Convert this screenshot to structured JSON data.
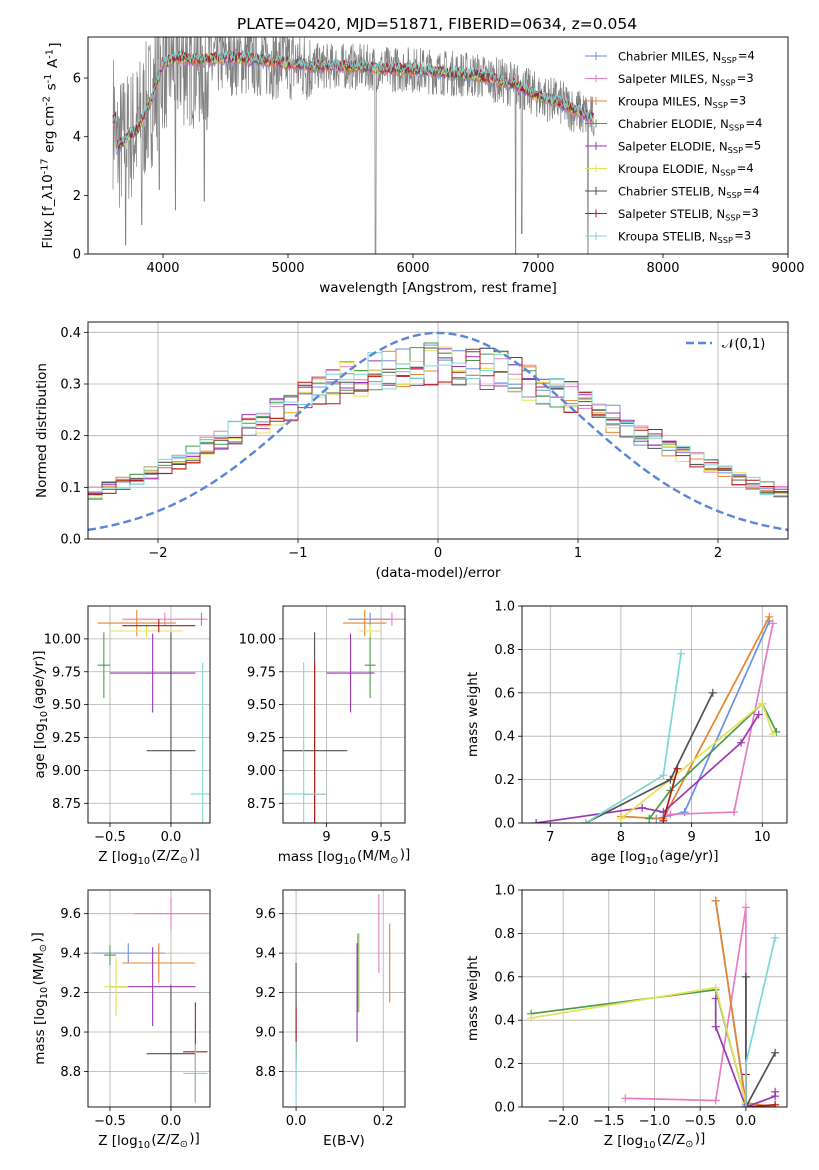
{
  "title": "PLATE=0420, MJD=51871, FIBERID=0634, z=0.054",
  "colors": [
    "#6b8ee6",
    "#e87dc0",
    "#e8842c",
    "#4d9a4d",
    "#9c36b5",
    "#e3e35a",
    "#505050",
    "#b31a1a",
    "#7fd6d6"
  ],
  "legend_labels": [
    "Chabrier MILES, N_{SSP}=4",
    "Salpeter MILES, N_{SSP}=3",
    "Kroupa MILES, N_{SSP}=3",
    "Chabrier ELODIE, N_{SSP}=4",
    "Salpeter ELODIE, N_{SSP}=5",
    "Kroupa ELODIE, N_{SSP}=4",
    "Chabrier STELIB, N_{SSP}=4",
    "Salpeter STELIB, N_{SSP}=3",
    "Kroupa STELIB, N_{SSP}=3"
  ],
  "chart_data": [
    {
      "id": "spectrum",
      "type": "line",
      "xlabel": "wavelength [Angstrom, rest frame]",
      "ylabel": "Flux [f_λ10^{-17} erg cm^{-2} s^{-1} A^{-1}]",
      "xlim": [
        3400,
        9000
      ],
      "ylim": [
        0,
        7.4
      ],
      "xticks": [
        4000,
        5000,
        6000,
        7000,
        8000,
        9000
      ],
      "yticks": [
        0,
        2,
        4,
        6
      ],
      "data_range": [
        3600,
        7450
      ],
      "continuum": [
        [
          3620,
          3.6
        ],
        [
          3700,
          3.9
        ],
        [
          3800,
          4.3
        ],
        [
          3900,
          5.2
        ],
        [
          4000,
          6.5
        ],
        [
          4100,
          6.7
        ],
        [
          4300,
          6.6
        ],
        [
          4500,
          6.7
        ],
        [
          4800,
          6.6
        ],
        [
          5000,
          6.5
        ],
        [
          5200,
          6.4
        ],
        [
          5500,
          6.4
        ],
        [
          5800,
          6.3
        ],
        [
          6000,
          6.3
        ],
        [
          6200,
          6.2
        ],
        [
          6500,
          6.1
        ],
        [
          6800,
          5.8
        ],
        [
          7000,
          5.4
        ],
        [
          7150,
          5.2
        ],
        [
          7300,
          4.9
        ],
        [
          7450,
          4.6
        ]
      ],
      "dips": [
        [
          3700,
          0.3
        ],
        [
          3830,
          1.0
        ],
        [
          3970,
          2.2
        ],
        [
          4100,
          1.5
        ],
        [
          4330,
          1.8
        ],
        [
          5700,
          0
        ],
        [
          6820,
          0
        ],
        [
          6870,
          0.7
        ],
        [
          7400,
          0
        ]
      ]
    },
    {
      "id": "residuals",
      "type": "step",
      "xlabel": "(data-model)/error",
      "ylabel": "Normed distribution",
      "xlim": [
        -2.5,
        2.5
      ],
      "ylim": [
        0,
        0.42
      ],
      "xticks": [
        -2,
        -1,
        0,
        1,
        2
      ],
      "yticks": [
        0.0,
        0.1,
        0.2,
        0.3,
        0.4
      ],
      "legend": "𝒩(0,1)",
      "bin_width": 0.1,
      "bin_start": -2.5
    },
    {
      "id": "age_vs_Z",
      "type": "errorbar",
      "xlabel": "Z [log_{10}(Z/Z_⊙)]",
      "ylabel": "age  [log_{10}(age/yr)]",
      "xlim": [
        -0.68,
        0.32
      ],
      "ylim": [
        8.6,
        10.25
      ],
      "xticks": [
        -0.5,
        0.0
      ],
      "xtick_labels": [
        "−0.5",
        "0.0"
      ],
      "yticks": [
        8.75,
        9.0,
        9.25,
        9.5,
        9.75,
        10.0
      ],
      "points": [
        {
          "s": 0,
          "x": 0.25,
          "xerr": 0.02,
          "y": 10.15,
          "yerr": 0.05
        },
        {
          "s": 1,
          "x": -0.05,
          "xerr": 0.35,
          "y": 10.15,
          "yerr": 0.05
        },
        {
          "s": 2,
          "x": -0.28,
          "xerr": 0.32,
          "y": 10.12,
          "yerr": 0.1
        },
        {
          "s": 3,
          "x": -0.55,
          "xerr": 0.05,
          "y": 9.8,
          "yerr": 0.25
        },
        {
          "s": 4,
          "x": -0.15,
          "xerr": 0.35,
          "y": 9.74,
          "yerr": 0.3
        },
        {
          "s": 5,
          "x": -0.2,
          "xerr": 0.3,
          "y": 10.06,
          "yerr": 0.05
        },
        {
          "s": 6,
          "x": 0.0,
          "xerr": 0.2,
          "y": 9.15,
          "yerr": 0.9
        },
        {
          "s": 7,
          "x": -0.1,
          "xerr": 0.3,
          "y": 10.1,
          "yerr": 0.05
        },
        {
          "s": 8,
          "x": 0.26,
          "xerr": 0.1,
          "y": 8.82,
          "yerr": 1.0
        }
      ]
    },
    {
      "id": "age_vs_mass",
      "type": "errorbar",
      "xlabel": "mass [log_{10}(M/M_⊙)]",
      "xlim": [
        8.6,
        9.72
      ],
      "ylim": [
        8.6,
        10.25
      ],
      "xticks": [
        9.0,
        9.5
      ],
      "yticks": [
        8.75,
        9.0,
        9.25,
        9.5,
        9.75,
        10.0
      ],
      "points": [
        {
          "s": 0,
          "x": 9.4,
          "xerr": 0.2,
          "y": 10.15,
          "yerr": 0.05
        },
        {
          "s": 1,
          "x": 9.6,
          "xerr": 0.2,
          "y": 10.15,
          "yerr": 0.05
        },
        {
          "s": 2,
          "x": 9.35,
          "xerr": 0.2,
          "y": 10.12,
          "yerr": 0.1
        },
        {
          "s": 3,
          "x": 9.4,
          "xerr": 0.05,
          "y": 9.8,
          "yerr": 0.25
        },
        {
          "s": 4,
          "x": 9.22,
          "xerr": 0.22,
          "y": 9.74,
          "yerr": 0.3
        },
        {
          "s": 5,
          "x": 9.4,
          "xerr": 0.1,
          "y": 10.06,
          "yerr": 0.05
        },
        {
          "s": 6,
          "x": 8.89,
          "xerr": 0.3,
          "y": 9.15,
          "yerr": 0.9
        },
        {
          "s": 7,
          "x": 8.89,
          "xerr": 0.1,
          "y": 8.82,
          "yerr": 1.0
        },
        {
          "s": 8,
          "x": 8.79,
          "xerr": 0.2,
          "y": 8.82,
          "yerr": 1.0
        }
      ]
    },
    {
      "id": "weight_vs_age",
      "type": "line",
      "xlabel": "age  [log_{10}(age/yr)]",
      "ylabel": "mass weight",
      "xlim": [
        6.6,
        10.35
      ],
      "ylim": [
        0,
        1.0
      ],
      "xticks": [
        7,
        8,
        9,
        10
      ],
      "yticks": [
        0.0,
        0.2,
        0.4,
        0.6,
        0.8,
        1.0
      ],
      "series": [
        {
          "s": 0,
          "x": [
            8.5,
            8.9,
            10.1
          ],
          "y": [
            0.02,
            0.05,
            0.93
          ]
        },
        {
          "s": 1,
          "x": [
            8.7,
            9.6,
            10.15
          ],
          "y": [
            0.04,
            0.05,
            0.92
          ]
        },
        {
          "s": 2,
          "x": [
            8.0,
            8.6,
            10.1
          ],
          "y": [
            0.03,
            0.02,
            0.95
          ]
        },
        {
          "s": 3,
          "x": [
            8.4,
            8.7,
            10.0,
            10.2
          ],
          "y": [
            0.02,
            0.15,
            0.55,
            0.42
          ]
        },
        {
          "s": 4,
          "x": [
            6.8,
            8.3,
            8.6,
            9.7,
            9.95
          ],
          "y": [
            0.0,
            0.07,
            0.05,
            0.37,
            0.5
          ]
        },
        {
          "s": 5,
          "x": [
            8.0,
            8.7,
            10.0,
            10.15
          ],
          "y": [
            0.02,
            0.2,
            0.55,
            0.41
          ]
        },
        {
          "s": 6,
          "x": [
            7.5,
            8.7,
            9.3
          ],
          "y": [
            0.0,
            0.2,
            0.6
          ]
        },
        {
          "s": 7,
          "x": [
            8.6,
            8.8
          ],
          "y": [
            0.01,
            0.25
          ]
        },
        {
          "s": 8,
          "x": [
            7.5,
            8.6,
            8.85
          ],
          "y": [
            0.0,
            0.22,
            0.78
          ]
        }
      ]
    },
    {
      "id": "mass_vs_Z",
      "type": "errorbar",
      "xlabel": "Z [log_{10}(Z/Z_⊙)]",
      "ylabel": "mass [log_{10}(M/M_⊙)]",
      "xlim": [
        -0.68,
        0.32
      ],
      "ylim": [
        8.62,
        9.72
      ],
      "xticks": [
        -0.5,
        0.0
      ],
      "xtick_labels": [
        "−0.5",
        "0.0"
      ],
      "yticks": [
        8.8,
        9.0,
        9.2,
        9.4,
        9.6
      ],
      "points": [
        {
          "s": 0,
          "x": -0.35,
          "xerr": 0.3,
          "y": 9.4,
          "yerr": 0.05
        },
        {
          "s": 1,
          "x": 0.0,
          "xerr": 0.3,
          "y": 9.6,
          "yerr": 0.08
        },
        {
          "s": 2,
          "x": -0.1,
          "xerr": 0.3,
          "y": 9.35,
          "yerr": 0.1
        },
        {
          "s": 3,
          "x": -0.5,
          "xerr": 0.05,
          "y": 9.39,
          "yerr": 0.05
        },
        {
          "s": 4,
          "x": -0.15,
          "xerr": 0.35,
          "y": 9.23,
          "yerr": 0.2
        },
        {
          "s": 5,
          "x": -0.45,
          "xerr": 0.1,
          "y": 9.23,
          "yerr": 0.15
        },
        {
          "s": 6,
          "x": 0.0,
          "xerr": 0.2,
          "y": 8.89,
          "yerr": 0.35
        },
        {
          "s": 7,
          "x": 0.2,
          "xerr": 0.1,
          "y": 8.9,
          "yerr": 0.25
        },
        {
          "s": 8,
          "x": 0.2,
          "xerr": 0.1,
          "y": 8.79,
          "yerr": 0.15
        }
      ]
    },
    {
      "id": "mass_vs_ebv",
      "type": "errorbar",
      "xlabel": "E(B-V)",
      "xlim": [
        -0.03,
        0.25
      ],
      "ylim": [
        8.62,
        9.72
      ],
      "xticks": [
        0.0,
        0.2
      ],
      "xtick_labels": [
        "0.0",
        "0.2"
      ],
      "yticks": [
        8.8,
        9.0,
        9.2,
        9.4,
        9.6
      ],
      "points": [
        {
          "s": 0,
          "x": 0.0,
          "xerr": 0,
          "y": 8.95,
          "yerr": 0.2
        },
        {
          "s": 1,
          "x": 0.19,
          "xerr": 0,
          "y": 9.5,
          "yerr": 0.2
        },
        {
          "s": 2,
          "x": 0.215,
          "xerr": 0,
          "y": 9.35,
          "yerr": 0.2
        },
        {
          "s": 3,
          "x": 0.142,
          "xerr": 0,
          "y": 9.3,
          "yerr": 0.2
        },
        {
          "s": 4,
          "x": 0.14,
          "xerr": 0,
          "y": 9.2,
          "yerr": 0.25
        },
        {
          "s": 5,
          "x": 0.145,
          "xerr": 0,
          "y": 9.3,
          "yerr": 0.2
        },
        {
          "s": 6,
          "x": 0.0,
          "xerr": 0,
          "y": 9.1,
          "yerr": 0.25
        },
        {
          "s": 7,
          "x": 0.0,
          "xerr": 0,
          "y": 9.0,
          "yerr": 0.12
        },
        {
          "s": 8,
          "x": 0.0,
          "xerr": 0,
          "y": 8.8,
          "yerr": 0.15
        }
      ]
    },
    {
      "id": "weight_vs_Z",
      "type": "line",
      "xlabel": "Z [log_{10}(Z/Z_⊙)]",
      "ylabel": "mass weight",
      "xlim": [
        -2.45,
        0.45
      ],
      "ylim": [
        0,
        1.0
      ],
      "xticks": [
        -2.0,
        -1.5,
        -1.0,
        -0.5,
        0.0
      ],
      "xtick_labels": [
        "−2.0",
        "−1.5",
        "−1.0",
        "−0.5",
        "0.0"
      ],
      "yticks": [
        0.0,
        0.2,
        0.4,
        0.6,
        0.8,
        1.0
      ],
      "series": [
        {
          "s": 0,
          "x": [
            -0.33,
            0.0,
            0.0
          ],
          "y": [
            0.95,
            0.01,
            0.0
          ]
        },
        {
          "s": 1,
          "x": [
            -1.32,
            -0.33,
            0.0,
            0.0
          ],
          "y": [
            0.04,
            0.03,
            0.92,
            0.02
          ]
        },
        {
          "s": 2,
          "x": [
            -0.33,
            0.0,
            0.32
          ],
          "y": [
            0.95,
            0.02,
            0.0
          ]
        },
        {
          "s": 3,
          "x": [
            -2.35,
            -0.33,
            0.0
          ],
          "y": [
            0.43,
            0.54,
            0.02
          ]
        },
        {
          "s": 4,
          "x": [
            -0.33,
            -0.33,
            0.0,
            0.32,
            0.32
          ],
          "y": [
            0.5,
            0.37,
            0.0,
            0.05,
            0.07
          ]
        },
        {
          "s": 5,
          "x": [
            -2.35,
            -0.33,
            0.0
          ],
          "y": [
            0.41,
            0.55,
            0.02
          ]
        },
        {
          "s": 6,
          "x": [
            0.0,
            0.0,
            0.32
          ],
          "y": [
            0.6,
            0.0,
            0.25
          ]
        },
        {
          "s": 7,
          "x": [
            0.0,
            0.0,
            0.32
          ],
          "y": [
            0.15,
            0.0,
            0.01
          ]
        },
        {
          "s": 8,
          "x": [
            0.0,
            0.0,
            0.32
          ],
          "y": [
            0.0,
            0.2,
            0.78
          ]
        }
      ]
    }
  ]
}
